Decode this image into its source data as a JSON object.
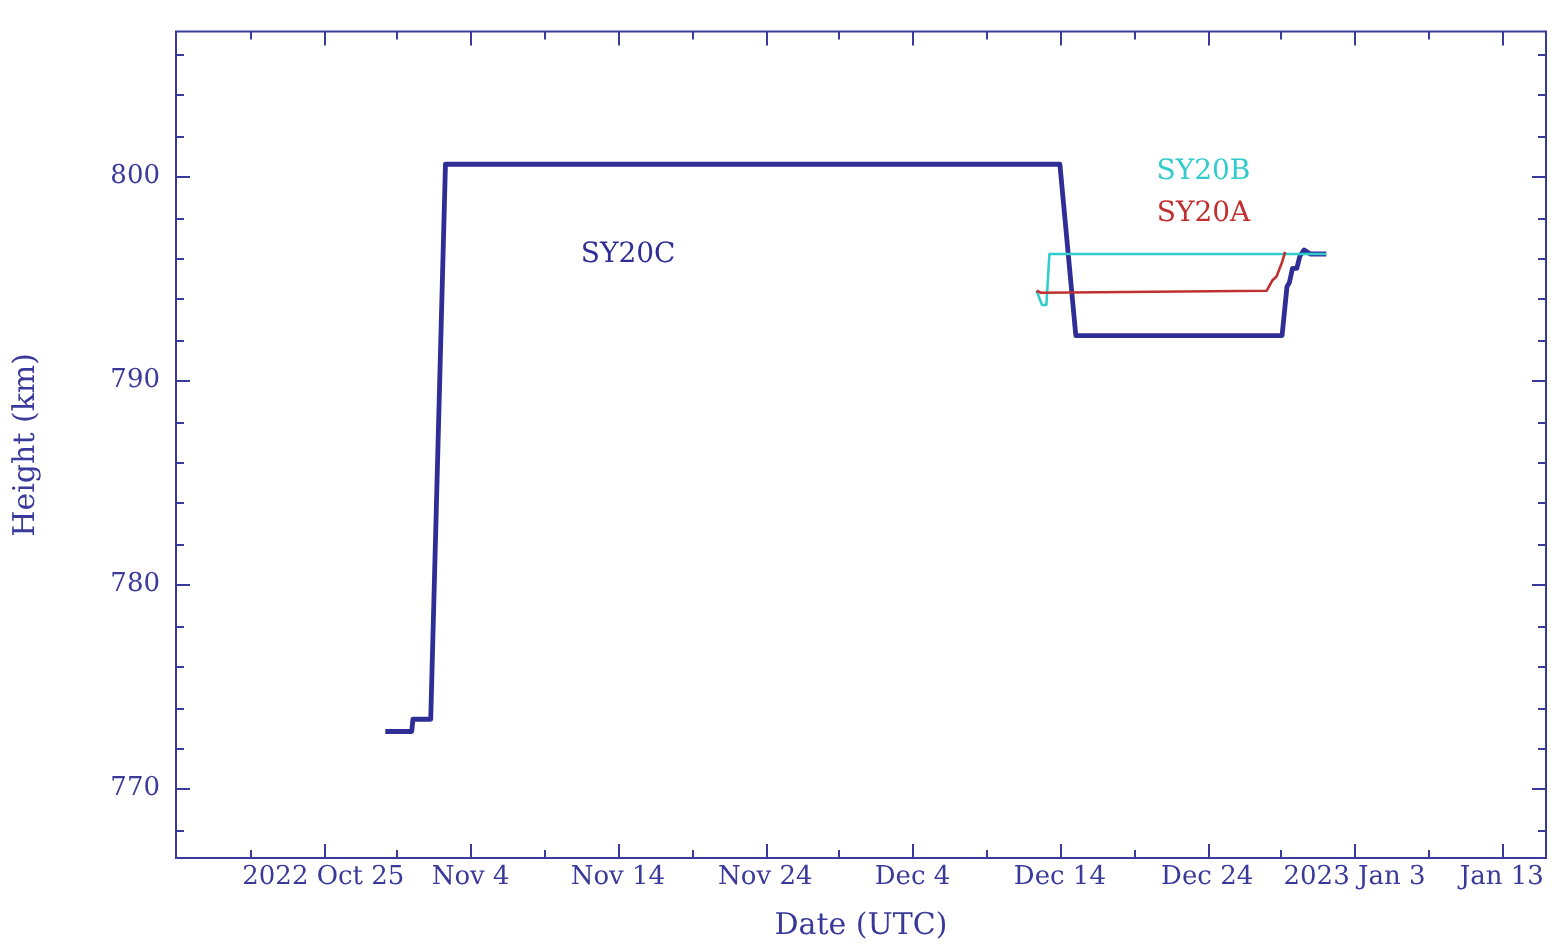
{
  "chart_data": {
    "type": "line",
    "xlabel": "Date (UTC)",
    "ylabel": "Height (km)",
    "xlim": [
      "2022-10-15",
      "2023-01-16"
    ],
    "ylim": [
      766.6,
      807.1
    ],
    "xticks": [
      {
        "value": "2022-10-20",
        "label": null
      },
      {
        "value": "2022-10-25",
        "label": "2022 Oct 25"
      },
      {
        "value": "2022-10-30",
        "label": null
      },
      {
        "value": "2022-11-04",
        "label": "Nov 4"
      },
      {
        "value": "2022-11-09",
        "label": null
      },
      {
        "value": "2022-11-14",
        "label": "Nov 14"
      },
      {
        "value": "2022-11-19",
        "label": null
      },
      {
        "value": "2022-11-24",
        "label": "Nov 24"
      },
      {
        "value": "2022-11-29",
        "label": null
      },
      {
        "value": "2022-12-04",
        "label": "Dec 4"
      },
      {
        "value": "2022-12-09",
        "label": null
      },
      {
        "value": "2022-12-14",
        "label": "Dec 14"
      },
      {
        "value": "2022-12-19",
        "label": null
      },
      {
        "value": "2022-12-24",
        "label": "Dec 24"
      },
      {
        "value": "2022-12-29",
        "label": null
      },
      {
        "value": "2023-01-03",
        "label": "2023 Jan 3"
      },
      {
        "value": "2023-01-08",
        "label": null
      },
      {
        "value": "2023-01-13",
        "label": "Jan 13"
      }
    ],
    "yticks": [
      {
        "value": 768,
        "label": null
      },
      770,
      {
        "value": 772,
        "label": null
      },
      {
        "value": 774,
        "label": null
      },
      {
        "value": 776,
        "label": null
      },
      {
        "value": 778,
        "label": null
      },
      780,
      {
        "value": 782,
        "label": null
      },
      {
        "value": 784,
        "label": null
      },
      {
        "value": 786,
        "label": null
      },
      {
        "value": 788,
        "label": null
      },
      790,
      {
        "value": 792,
        "label": null
      },
      {
        "value": 794,
        "label": null
      },
      {
        "value": 796,
        "label": null
      },
      {
        "value": 798,
        "label": null
      },
      800,
      {
        "value": 802,
        "label": null
      },
      {
        "value": 804,
        "label": null
      },
      {
        "value": 806,
        "label": null
      }
    ],
    "grid": false,
    "legend": false,
    "marker": "none",
    "line_style": "solid",
    "series": [
      {
        "name": "SY20C",
        "color": "#2e2e96",
        "x": [
          "2022-10-29T05:00",
          "2022-10-31T00:00",
          "2022-10-31T02:00",
          "2022-11-01T07:00",
          "2022-11-02T07:00",
          "2022-12-14T00:00",
          "2022-12-15T02:00",
          "2022-12-29T02:00",
          "2022-12-29T10:00",
          "2022-12-29T14:00",
          "2022-12-29T19:00",
          "2022-12-30T02:00",
          "2022-12-30T07:00",
          "2022-12-30T14:00",
          "2022-12-31T00:00",
          "2023-01-01T02:00"
        ],
        "values": [
          772.8,
          772.8,
          773.4,
          773.4,
          800.6,
          800.6,
          792.2,
          792.2,
          794.6,
          794.8,
          795.5,
          795.5,
          796.1,
          796.4,
          796.2,
          796.2
        ]
      },
      {
        "name": "SY20B",
        "color": "#33cccc",
        "x": [
          "2022-12-12T10:00",
          "2022-12-12T19:00",
          "2022-12-13T02:00",
          "2022-12-13T07:00",
          "2023-01-01T02:00"
        ],
        "values": [
          794.4,
          793.7,
          793.7,
          796.2,
          796.2
        ]
      },
      {
        "name": "SY20A",
        "color": "#c03030",
        "x": [
          "2022-12-12T10:00",
          "2022-12-12T17:00",
          "2022-12-28T01:00",
          "2022-12-28T10:00",
          "2022-12-28T17:00",
          "2022-12-29T02:00",
          "2022-12-29T07:00"
        ],
        "values": [
          794.4,
          794.3,
          794.4,
          794.9,
          795.1,
          795.8,
          796.3
        ]
      }
    ]
  }
}
